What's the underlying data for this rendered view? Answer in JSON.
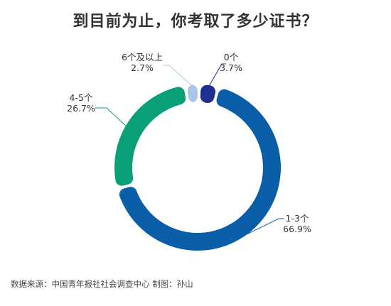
{
  "title": "到目前为止，你考取了多少证书？",
  "source": "数据来源：中国青年报社社会调查中心 制图：孙山",
  "chart_data": {
    "type": "pie",
    "subtype": "donut",
    "title": "到目前为止，你考取了多少证书？",
    "slices": [
      {
        "label": "0个",
        "value": 3.7,
        "value_label": "3.7%",
        "color": "#1f2f8e"
      },
      {
        "label": "1-3个",
        "value": 66.9,
        "value_label": "66.9%",
        "color": "#0a5ea8"
      },
      {
        "label": "4-5个",
        "value": 26.7,
        "value_label": "26.7%",
        "color": "#0aa077"
      },
      {
        "label": "6个及以上",
        "value": 2.7,
        "value_label": "2.7%",
        "color": "#a9c8e8"
      }
    ]
  }
}
